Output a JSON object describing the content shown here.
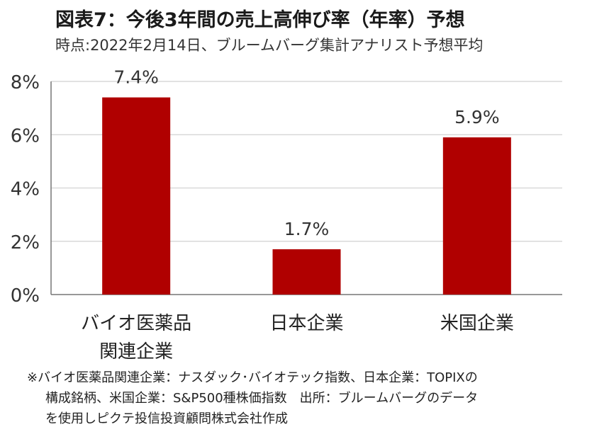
{
  "title": "図表7：今後3年間の売上高伸び率（年率）予想",
  "subtitle": "時点:2022年2月14日、ブルームバーグ集計アナリスト予想平均",
  "chart_data": {
    "type": "bar",
    "categories": [
      "バイオ医薬品\n関連企業",
      "日本企業",
      "米国企業"
    ],
    "values": [
      7.4,
      1.7,
      5.9
    ],
    "data_labels": [
      "7.4%",
      "1.7%",
      "5.9%"
    ],
    "y_ticks": [
      "0%",
      "2%",
      "4%",
      "6%",
      "8%"
    ],
    "ylim": [
      0,
      8
    ],
    "grid": true,
    "bar_color": "#b00000",
    "grid_color": "#d9d9d9"
  },
  "footnote": {
    "line1": "※バイオ医薬品関連企業：ナスダック･バイオテック指数、日本企業：TOPIXの",
    "line2": "構成銘柄、米国企業：S&P500種株価指数　出所：ブルームバーグのデータ",
    "line3": "を使用しピクテ投信投資顧問株式会社作成"
  }
}
